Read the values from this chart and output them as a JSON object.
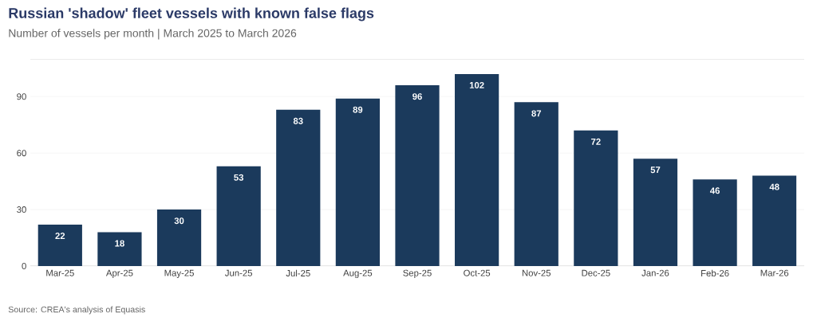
{
  "chart_data": {
    "type": "bar",
    "title": "Russian 'shadow' fleet vessels with known false flags",
    "subtitle": "Number of vessels per month | March 2025 to March 2026",
    "categories": [
      "Mar-25",
      "Apr-25",
      "May-25",
      "Jun-25",
      "Jul-25",
      "Aug-25",
      "Sep-25",
      "Oct-25",
      "Nov-25",
      "Dec-25",
      "Jan-26",
      "Feb-26",
      "Mar-26"
    ],
    "values": [
      22,
      18,
      30,
      53,
      83,
      89,
      96,
      102,
      87,
      72,
      57,
      46,
      48
    ],
    "color": "#1b3a5c",
    "data_labels": true,
    "ylim": [
      0,
      110
    ],
    "yticks": [
      0,
      30,
      60,
      90
    ],
    "grid": "y",
    "annotations": [
      "Source: CREA's analysis of Equasis"
    ]
  }
}
